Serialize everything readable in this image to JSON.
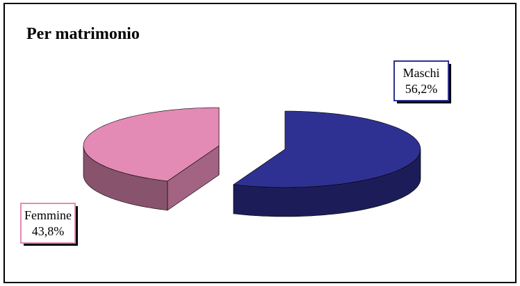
{
  "chart_data": {
    "type": "pie3d",
    "title": "Per matrimonio",
    "categories": [
      "Maschi",
      "Femmine"
    ],
    "values": [
      56.2,
      43.8
    ],
    "value_labels": [
      "56,2%",
      "43,8%"
    ],
    "colors": [
      "#2e3192",
      "#e38ab5"
    ]
  }
}
